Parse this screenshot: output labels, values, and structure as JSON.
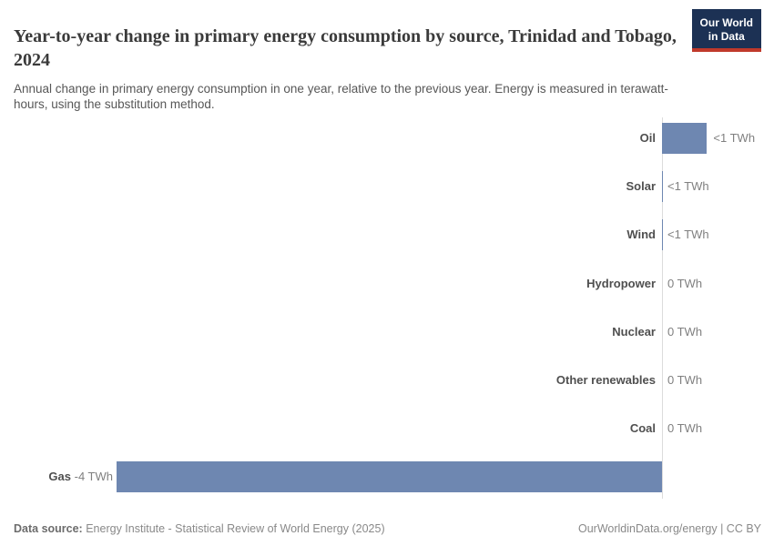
{
  "header": {
    "title": "Year-to-year change in primary energy consumption by source, Trinidad and Tobago, 2024",
    "subtitle": "Annual change in primary energy consumption in one year, relative to the previous year. Energy is measured in terawatt-hours, using the substitution method.",
    "logo_line1": "Our World",
    "logo_line2": "in Data"
  },
  "footer": {
    "source_label": "Data source:",
    "source_text": "Energy Institute - Statistical Review of World Energy (2025)",
    "credit": "OurWorldinData.org/energy | CC BY"
  },
  "colors": {
    "bar": "#6e87b1",
    "axis": "#dcdcdc",
    "category_label": "#4f4f4f",
    "value_label": "#808080",
    "logo_bg": "#1c3154",
    "logo_accent": "#c0392b"
  },
  "chart_data": {
    "type": "bar",
    "orientation": "horizontal",
    "unit": "TWh",
    "title": "Year-to-year change in primary energy consumption by source, Trinidad and Tobago, 2024",
    "categories": [
      "Oil",
      "Solar",
      "Wind",
      "Hydropower",
      "Nuclear",
      "Other renewables",
      "Coal",
      "Gas"
    ],
    "values": [
      0.33,
      0.01,
      0.005,
      0,
      0,
      0,
      0,
      -4
    ],
    "value_labels": [
      "<1 TWh",
      "<1 TWh",
      "<1 TWh",
      "0 TWh",
      "0 TWh",
      "0 TWh",
      "0 TWh",
      "-4 TWh"
    ],
    "xlim": [
      -4,
      0.4
    ],
    "grid": false,
    "legend": false
  }
}
